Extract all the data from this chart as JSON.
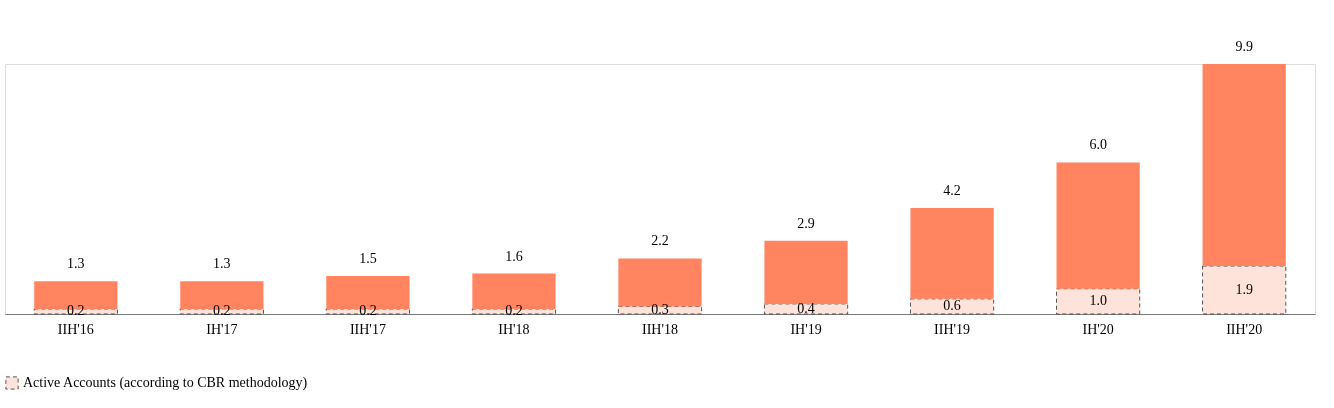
{
  "chart_data": {
    "type": "bar",
    "stacked": true,
    "legend": "bottom",
    "categories": [
      "IIH'16",
      "IH'17",
      "IIH'17",
      "IH'18",
      "IIH'18",
      "IH'19",
      "IIH'19",
      "IH'20",
      "IIH'20"
    ],
    "series": [
      {
        "name": "Active Accounts (according to CBR methodology)",
        "color": "#fde3da",
        "line_style": "dashed",
        "values": [
          0.2,
          0.2,
          0.2,
          0.2,
          0.3,
          0.4,
          0.6,
          1.0,
          1.9
        ],
        "value_labels": [
          "0.2",
          "0.2",
          "0.2",
          "0.2",
          "0.3",
          "0.4",
          "0.6",
          "1.0",
          "1.9"
        ]
      },
      {
        "color": "#ff845f",
        "values": [
          1.1,
          1.1,
          1.3,
          1.4,
          1.9,
          2.5,
          3.6,
          5.0,
          8.0
        ]
      }
    ],
    "totals": [
      "1.3",
      "1.3",
      "1.5",
      "1.6",
      "2.2",
      "2.9",
      "4.2",
      "6.0",
      "9.9"
    ]
  }
}
